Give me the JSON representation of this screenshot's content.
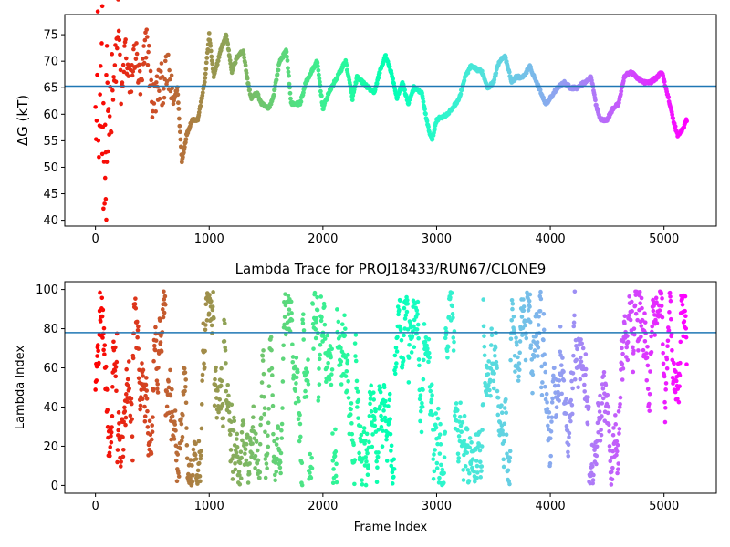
{
  "figure": {
    "background": "#ffffff"
  },
  "chart_data": [
    {
      "type": "scatter",
      "title": "",
      "xlabel": "",
      "ylabel": "ΔG (kT)",
      "xlim": [
        -270,
        5460
      ],
      "ylim": [
        38.9,
        78.8
      ],
      "xticks": [
        0,
        1000,
        2000,
        3000,
        4000,
        5000
      ],
      "yticks": [
        40,
        45,
        50,
        55,
        60,
        65,
        70,
        75
      ],
      "hline": {
        "y": 65.3,
        "color": "#1f77b4"
      },
      "colormap": "rainbow (reversed: red at frame 0, violet at frame 5200)",
      "trace_keypoints": [
        [
          0,
          70
        ],
        [
          10,
          58
        ],
        [
          20,
          72
        ],
        [
          30,
          52
        ],
        [
          40,
          62
        ],
        [
          50,
          66
        ],
        [
          60,
          72
        ],
        [
          80,
          45
        ],
        [
          100,
          64
        ],
        [
          120,
          60
        ],
        [
          150,
          66
        ],
        [
          180,
          70
        ],
        [
          200,
          78
        ],
        [
          230,
          62
        ],
        [
          260,
          73
        ],
        [
          300,
          65
        ],
        [
          350,
          72
        ],
        [
          400,
          64
        ],
        [
          450,
          75
        ],
        [
          500,
          62
        ],
        [
          550,
          65
        ],
        [
          600,
          66
        ],
        [
          640,
          68
        ],
        [
          680,
          62
        ],
        [
          720,
          65
        ],
        [
          760,
          51
        ],
        [
          800,
          56
        ],
        [
          850,
          59
        ],
        [
          900,
          59
        ],
        [
          960,
          66
        ],
        [
          1000,
          75
        ],
        [
          1040,
          67
        ],
        [
          1100,
          72
        ],
        [
          1150,
          75
        ],
        [
          1200,
          68
        ],
        [
          1250,
          71
        ],
        [
          1300,
          72
        ],
        [
          1340,
          66
        ],
        [
          1370,
          63
        ],
        [
          1420,
          64
        ],
        [
          1460,
          62
        ],
        [
          1520,
          61
        ],
        [
          1560,
          63
        ],
        [
          1620,
          70
        ],
        [
          1680,
          72
        ],
        [
          1720,
          62
        ],
        [
          1800,
          62
        ],
        [
          1850,
          66
        ],
        [
          1900,
          68
        ],
        [
          1950,
          70
        ],
        [
          2000,
          61
        ],
        [
          2050,
          64
        ],
        [
          2100,
          66
        ],
        [
          2150,
          68
        ],
        [
          2200,
          70
        ],
        [
          2260,
          63
        ],
        [
          2300,
          67
        ],
        [
          2350,
          66
        ],
        [
          2400,
          65
        ],
        [
          2450,
          64
        ],
        [
          2500,
          68
        ],
        [
          2550,
          71
        ],
        [
          2600,
          68
        ],
        [
          2650,
          63
        ],
        [
          2700,
          66
        ],
        [
          2750,
          62
        ],
        [
          2800,
          65
        ],
        [
          2870,
          64
        ],
        [
          2920,
          58
        ],
        [
          2960,
          55
        ],
        [
          3000,
          59
        ],
        [
          3100,
          60
        ],
        [
          3200,
          63
        ],
        [
          3250,
          67
        ],
        [
          3300,
          69
        ],
        [
          3400,
          68
        ],
        [
          3450,
          65
        ],
        [
          3500,
          66
        ],
        [
          3550,
          70
        ],
        [
          3600,
          71
        ],
        [
          3660,
          66
        ],
        [
          3700,
          67
        ],
        [
          3760,
          67
        ],
        [
          3820,
          69
        ],
        [
          3880,
          66
        ],
        [
          3920,
          64
        ],
        [
          3960,
          62
        ],
        [
          4000,
          63
        ],
        [
          4060,
          65
        ],
        [
          4120,
          66
        ],
        [
          4180,
          65
        ],
        [
          4240,
          65
        ],
        [
          4300,
          66
        ],
        [
          4360,
          67
        ],
        [
          4400,
          62
        ],
        [
          4440,
          59
        ],
        [
          4500,
          59
        ],
        [
          4550,
          61
        ],
        [
          4600,
          62
        ],
        [
          4650,
          67
        ],
        [
          4700,
          68
        ],
        [
          4760,
          67
        ],
        [
          4820,
          66
        ],
        [
          4880,
          66
        ],
        [
          4940,
          67
        ],
        [
          4980,
          68
        ],
        [
          5040,
          63
        ],
        [
          5080,
          59
        ],
        [
          5120,
          56
        ],
        [
          5160,
          57
        ],
        [
          5200,
          59
        ]
      ]
    },
    {
      "type": "scatter",
      "title": "Lambda Trace for PROJ18433/RUN67/CLONE9",
      "xlabel": "Frame Index",
      "ylabel": "Lambda Index",
      "xlim": [
        -270,
        5460
      ],
      "ylim": [
        -4,
        104
      ],
      "xticks": [
        0,
        1000,
        2000,
        3000,
        4000,
        5000
      ],
      "yticks": [
        0,
        20,
        40,
        60,
        80,
        100
      ],
      "hline": {
        "y": 78,
        "color": "#1f77b4"
      },
      "colormap": "rainbow (reversed: red at frame 0, violet at frame 5200)",
      "frame_range": [
        0,
        5200
      ],
      "lambda_range": [
        0,
        99
      ]
    }
  ]
}
